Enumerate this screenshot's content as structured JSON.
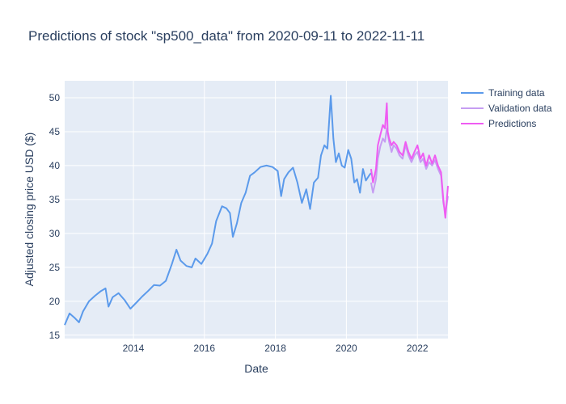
{
  "chart_data": {
    "type": "line",
    "title": "Predictions of stock \"sp500_data\" from 2020-09-11 to 2022-11-11",
    "xlabel": "Date",
    "ylabel": "Adjusted closing price USD ($)",
    "xlim": [
      "2012-01-25",
      "2022-11-11"
    ],
    "ylim": [
      14.5,
      52.5
    ],
    "x_ticks": [
      "2014",
      "2016",
      "2018",
      "2020",
      "2022"
    ],
    "y_ticks": [
      15,
      20,
      25,
      30,
      35,
      40,
      45,
      50
    ],
    "grid": true,
    "legend_position": "top-right",
    "series": [
      {
        "name": "Training data",
        "color": "#5b9aeb",
        "x": [
          "2012-01-25",
          "2012-03-15",
          "2012-05-10",
          "2012-06-20",
          "2012-08-01",
          "2012-10-01",
          "2012-12-01",
          "2013-02-01",
          "2013-03-20",
          "2013-04-20",
          "2013-06-01",
          "2013-08-01",
          "2013-10-01",
          "2013-12-01",
          "2014-02-01",
          "2014-04-01",
          "2014-06-01",
          "2014-08-01",
          "2014-10-01",
          "2014-12-01",
          "2015-02-01",
          "2015-03-20",
          "2015-05-01",
          "2015-07-01",
          "2015-08-25",
          "2015-10-01",
          "2015-12-01",
          "2016-02-01",
          "2016-03-20",
          "2016-05-01",
          "2016-07-01",
          "2016-08-15",
          "2016-09-20",
          "2016-10-20",
          "2016-12-01",
          "2017-01-15",
          "2017-03-01",
          "2017-04-15",
          "2017-06-01",
          "2017-08-01",
          "2017-10-01",
          "2017-12-01",
          "2018-01-25",
          "2018-03-01",
          "2018-04-01",
          "2018-05-15",
          "2018-07-01",
          "2018-08-15",
          "2018-10-01",
          "2018-11-15",
          "2018-12-24",
          "2019-02-01",
          "2019-03-15",
          "2019-04-15",
          "2019-05-20",
          "2019-06-20",
          "2019-07-25",
          "2019-08-20",
          "2019-09-15",
          "2019-10-15",
          "2019-11-15",
          "2019-12-15",
          "2020-01-20",
          "2020-02-20",
          "2020-03-23",
          "2020-04-20",
          "2020-05-20",
          "2020-06-20",
          "2020-07-20",
          "2020-08-20",
          "2020-09-10"
        ],
        "y": [
          16.5,
          18.2,
          17.5,
          16.9,
          18.5,
          20.0,
          20.8,
          21.5,
          21.9,
          19.2,
          20.6,
          21.2,
          20.2,
          18.9,
          19.8,
          20.7,
          21.5,
          22.4,
          22.3,
          23.0,
          25.5,
          27.6,
          26.0,
          25.2,
          25.0,
          26.3,
          25.5,
          27.0,
          28.5,
          31.8,
          34.0,
          33.7,
          33.0,
          29.5,
          31.5,
          34.5,
          36.0,
          38.5,
          39.0,
          39.8,
          40.0,
          39.8,
          39.2,
          35.5,
          38.0,
          39.0,
          39.7,
          37.5,
          34.5,
          36.5,
          33.6,
          37.5,
          38.2,
          41.5,
          43.0,
          42.5,
          50.3,
          44.0,
          40.5,
          41.8,
          40.0,
          39.7,
          42.3,
          41.0,
          37.5,
          38.0,
          36.0,
          39.5,
          37.8,
          38.5,
          38.9
        ]
      },
      {
        "name": "Validation data",
        "color": "#c69df2",
        "x": [
          "2020-09-11",
          "2020-10-01",
          "2020-11-01",
          "2020-11-20",
          "2020-12-15",
          "2021-01-10",
          "2021-02-01",
          "2021-02-20",
          "2021-03-15",
          "2021-04-10",
          "2021-05-01",
          "2021-06-01",
          "2021-07-01",
          "2021-08-01",
          "2021-09-01",
          "2021-10-01",
          "2021-11-01",
          "2021-12-01",
          "2022-01-01",
          "2022-02-01",
          "2022-03-01",
          "2022-04-01",
          "2022-05-01",
          "2022-06-01",
          "2022-07-01",
          "2022-08-01",
          "2022-09-01",
          "2022-09-25",
          "2022-10-15",
          "2022-11-11"
        ],
        "y": [
          37.5,
          36.0,
          38.0,
          41.0,
          42.8,
          44.0,
          43.5,
          45.5,
          43.5,
          42.0,
          43.0,
          42.5,
          41.5,
          41.0,
          43.0,
          41.5,
          40.5,
          41.5,
          42.0,
          40.5,
          41.0,
          39.5,
          40.5,
          40.0,
          40.8,
          39.5,
          38.5,
          34.5,
          33.0,
          35.5
        ]
      },
      {
        "name": "Predictions",
        "color": "#ef5cf2",
        "x": [
          "2020-09-11",
          "2020-10-01",
          "2020-11-01",
          "2020-11-20",
          "2020-12-15",
          "2021-01-10",
          "2021-02-01",
          "2021-02-20",
          "2021-03-01",
          "2021-03-15",
          "2021-04-10",
          "2021-05-01",
          "2021-06-01",
          "2021-07-01",
          "2021-08-01",
          "2021-09-01",
          "2021-10-01",
          "2021-11-01",
          "2021-12-01",
          "2022-01-01",
          "2022-02-01",
          "2022-03-01",
          "2022-04-01",
          "2022-05-01",
          "2022-06-01",
          "2022-07-01",
          "2022-08-01",
          "2022-09-01",
          "2022-09-25",
          "2022-10-15",
          "2022-11-11"
        ],
        "y": [
          39.5,
          37.5,
          39.5,
          43.0,
          44.5,
          46.0,
          45.5,
          49.2,
          45.0,
          44.0,
          43.0,
          43.5,
          43.0,
          42.0,
          41.5,
          43.5,
          42.0,
          41.0,
          42.0,
          43.0,
          41.0,
          41.8,
          40.0,
          41.5,
          40.3,
          41.5,
          40.0,
          39.0,
          35.0,
          32.3,
          37.0
        ]
      }
    ]
  }
}
